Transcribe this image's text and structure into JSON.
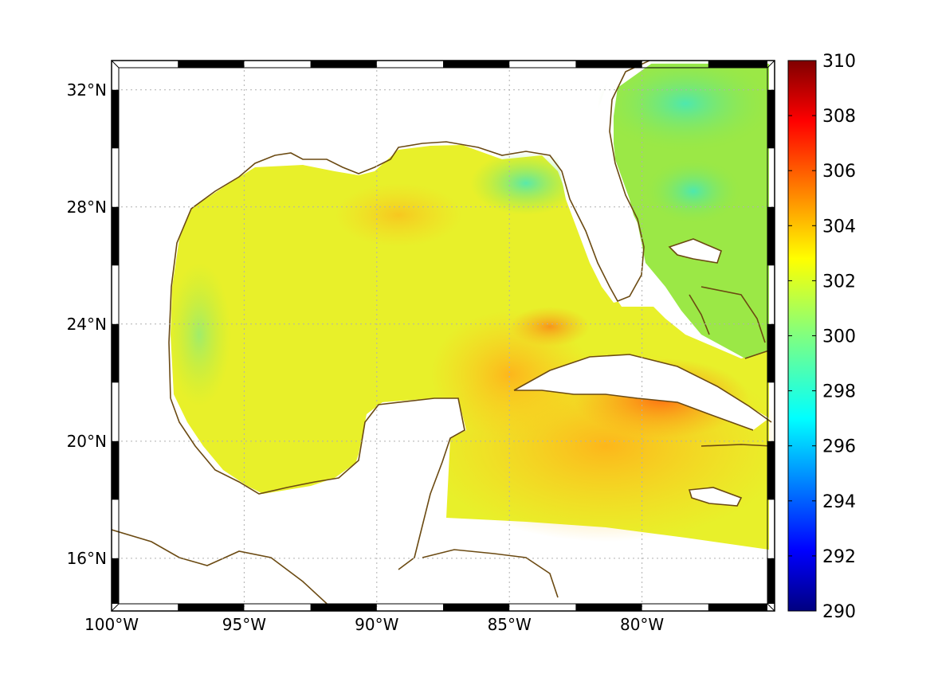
{
  "map": {
    "lon_range": [
      -100,
      -75
    ],
    "lat_range": [
      14.2,
      33
    ],
    "lon_ticks": [
      {
        "value": -100,
        "label": "100°W"
      },
      {
        "value": -95,
        "label": "95°W"
      },
      {
        "value": -90,
        "label": "90°W"
      },
      {
        "value": -85,
        "label": "85°W"
      },
      {
        "value": -80,
        "label": "80°W"
      }
    ],
    "lat_ticks": [
      {
        "value": 32,
        "label": "32°N"
      },
      {
        "value": 28,
        "label": "28°N"
      },
      {
        "value": 24,
        "label": "24°N"
      },
      {
        "value": 20,
        "label": "20°N"
      },
      {
        "value": 16,
        "label": "16°N"
      }
    ],
    "grid": "dotted",
    "coastline_color": "#6b4a12",
    "field_colors": {
      "gulf": "#f4f020",
      "atlantic": "#8fe84a",
      "caribbean": "#ffbe1e",
      "hot_spot": "#ff7a14"
    }
  },
  "colorbar": {
    "min": 290,
    "max": 310,
    "colormap": "jet",
    "ticks": [
      "290",
      "292",
      "294",
      "296",
      "298",
      "300",
      "302",
      "304",
      "306",
      "308",
      "310"
    ]
  }
}
